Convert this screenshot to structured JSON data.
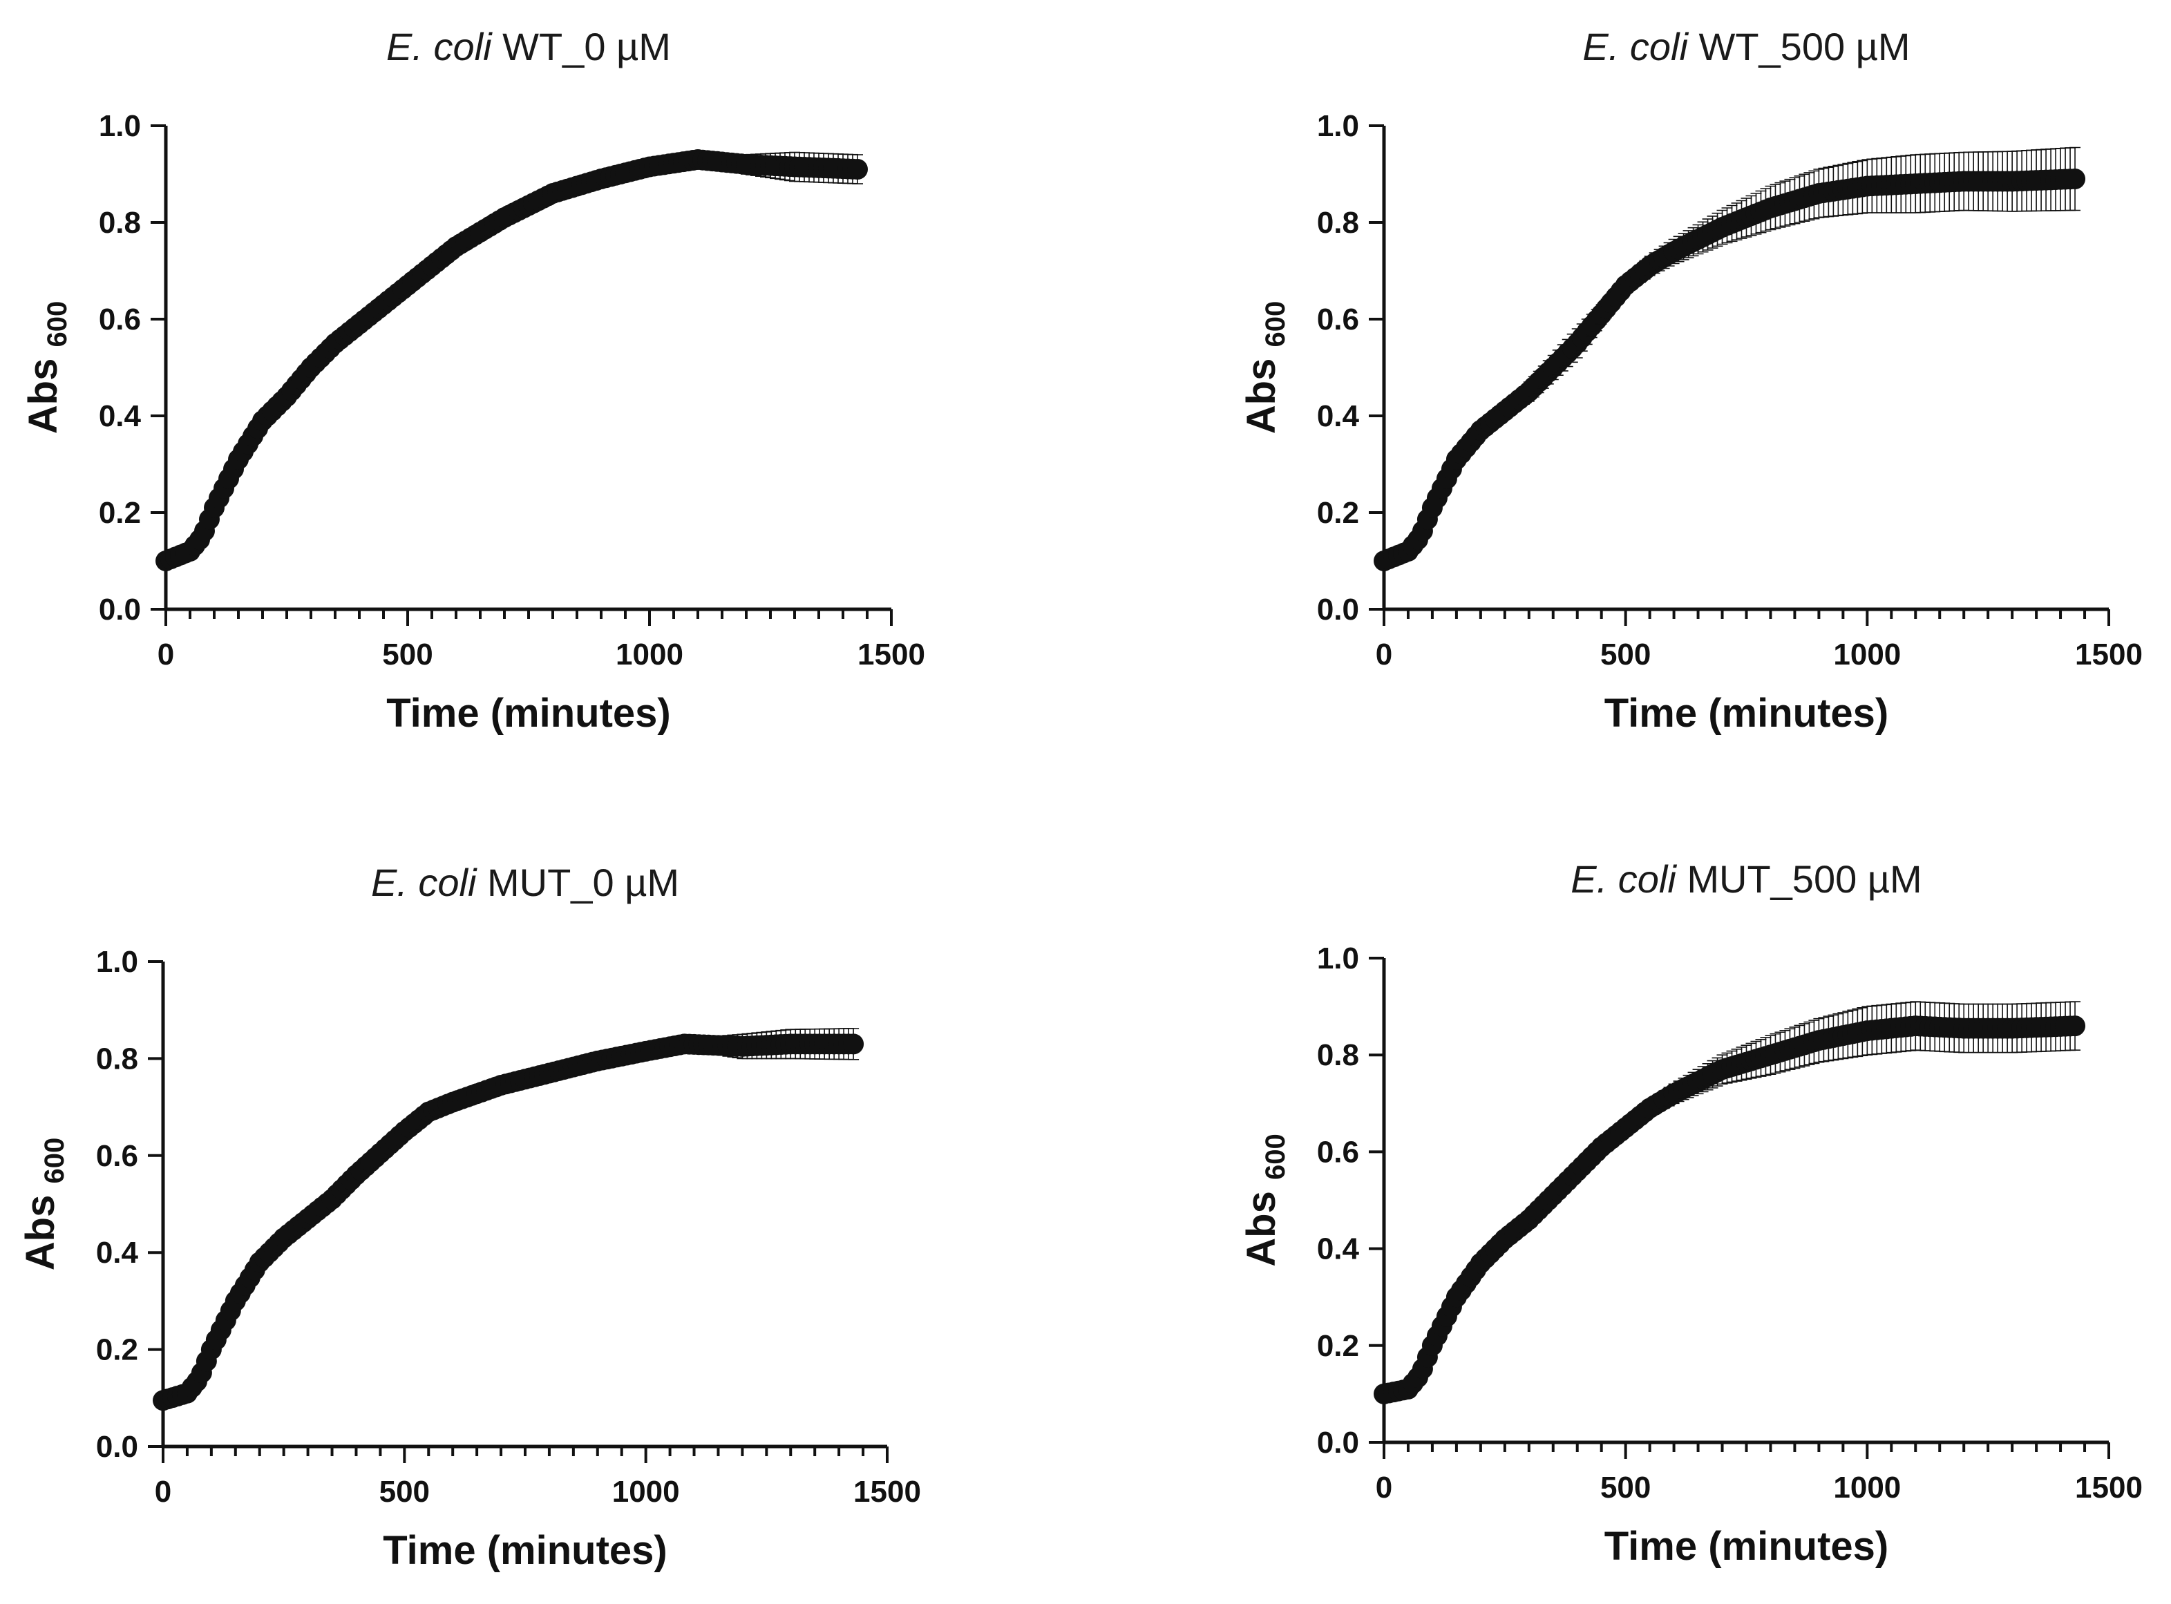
{
  "colors": {
    "marker": "#111111",
    "axis": "#111111",
    "background": "#ffffff"
  },
  "chart_data": [
    {
      "id": "wt0",
      "type": "scatter",
      "title": {
        "italic": "E. coli",
        "rest": " WT_0 µM"
      },
      "xlabel": "Time (minutes)",
      "ylabel": {
        "main": "Abs",
        "sub": "600"
      },
      "xlim": [
        0,
        1500
      ],
      "ylim": [
        0,
        1.0
      ],
      "xticks": [
        "0",
        "500",
        "1000",
        "1500"
      ],
      "yticks": [
        "0.0",
        "0.2",
        "0.4",
        "0.6",
        "0.8",
        "1.0"
      ],
      "series": [
        {
          "name": "E. coli WT_0 µM",
          "x": [
            0,
            50,
            75,
            100,
            150,
            200,
            250,
            300,
            350,
            400,
            500,
            600,
            700,
            800,
            900,
            1000,
            1100,
            1200,
            1300,
            1430
          ],
          "y": [
            0.1,
            0.12,
            0.15,
            0.21,
            0.31,
            0.39,
            0.44,
            0.5,
            0.55,
            0.59,
            0.67,
            0.75,
            0.81,
            0.86,
            0.89,
            0.915,
            0.93,
            0.92,
            0.915,
            0.91
          ],
          "err": [
            0.003,
            0.003,
            0.003,
            0.003,
            0.003,
            0.003,
            0.003,
            0.003,
            0.003,
            0.003,
            0.004,
            0.004,
            0.005,
            0.005,
            0.006,
            0.008,
            0.01,
            0.02,
            0.03,
            0.03
          ]
        }
      ]
    },
    {
      "id": "wt500",
      "type": "scatter",
      "title": {
        "italic": "E. coli",
        "rest": " WT_500 µM"
      },
      "xlabel": "Time (minutes)",
      "ylabel": {
        "main": "Abs",
        "sub": "600"
      },
      "xlim": [
        0,
        1500
      ],
      "ylim": [
        0,
        1.0
      ],
      "xticks": [
        "0",
        "500",
        "1000",
        "1500"
      ],
      "yticks": [
        "0.0",
        "0.2",
        "0.4",
        "0.6",
        "0.8",
        "1.0"
      ],
      "series": [
        {
          "name": "E. coli WT_500 µM",
          "x": [
            0,
            50,
            75,
            100,
            150,
            200,
            250,
            300,
            350,
            400,
            450,
            500,
            550,
            600,
            700,
            800,
            900,
            1000,
            1100,
            1200,
            1300,
            1430
          ],
          "y": [
            0.1,
            0.12,
            0.15,
            0.21,
            0.31,
            0.37,
            0.41,
            0.45,
            0.5,
            0.55,
            0.61,
            0.67,
            0.71,
            0.74,
            0.79,
            0.83,
            0.86,
            0.875,
            0.88,
            0.885,
            0.885,
            0.89
          ],
          "err": [
            0.003,
            0.003,
            0.003,
            0.003,
            0.004,
            0.005,
            0.01,
            0.02,
            0.025,
            0.03,
            0.02,
            0.015,
            0.02,
            0.025,
            0.035,
            0.045,
            0.05,
            0.055,
            0.06,
            0.06,
            0.062,
            0.065
          ]
        }
      ]
    },
    {
      "id": "mut0",
      "type": "scatter",
      "title": {
        "italic": "E. coli",
        "rest": " MUT_0 µM"
      },
      "xlabel": "Time (minutes)",
      "ylabel": {
        "main": "Abs",
        "sub": "600"
      },
      "xlim": [
        0,
        1500
      ],
      "ylim": [
        0,
        1.0
      ],
      "xticks": [
        "0",
        "500",
        "1000",
        "1500"
      ],
      "yticks": [
        "0.0",
        "0.2",
        "0.4",
        "0.6",
        "0.8",
        "1.0"
      ],
      "series": [
        {
          "name": "E. coli MUT_0 µM",
          "x": [
            0,
            50,
            75,
            100,
            150,
            200,
            250,
            300,
            350,
            400,
            500,
            550,
            600,
            700,
            800,
            900,
            1000,
            1080,
            1200,
            1300,
            1430
          ],
          "y": [
            0.095,
            0.11,
            0.14,
            0.2,
            0.3,
            0.38,
            0.43,
            0.47,
            0.51,
            0.56,
            0.65,
            0.69,
            0.71,
            0.745,
            0.77,
            0.795,
            0.815,
            0.83,
            0.825,
            0.83,
            0.83
          ],
          "err": [
            0.003,
            0.003,
            0.003,
            0.003,
            0.003,
            0.003,
            0.003,
            0.003,
            0.003,
            0.004,
            0.004,
            0.004,
            0.004,
            0.005,
            0.005,
            0.006,
            0.008,
            0.01,
            0.025,
            0.03,
            0.032
          ]
        }
      ]
    },
    {
      "id": "mut500",
      "type": "scatter",
      "title": {
        "italic": "E. coli",
        "rest": " MUT_500 µM"
      },
      "xlabel": "Time (minutes)",
      "ylabel": {
        "main": "Abs",
        "sub": "600"
      },
      "xlim": [
        0,
        1500
      ],
      "ylim": [
        0,
        1.0
      ],
      "xticks": [
        "0",
        "500",
        "1000",
        "1500"
      ],
      "yticks": [
        "0.0",
        "0.2",
        "0.4",
        "0.6",
        "0.8",
        "1.0"
      ],
      "series": [
        {
          "name": "E. coli MUT_500 µM",
          "x": [
            0,
            50,
            75,
            100,
            150,
            200,
            250,
            300,
            350,
            400,
            450,
            500,
            550,
            600,
            700,
            800,
            900,
            1000,
            1100,
            1200,
            1300,
            1430
          ],
          "y": [
            0.1,
            0.11,
            0.14,
            0.2,
            0.3,
            0.37,
            0.42,
            0.46,
            0.51,
            0.56,
            0.61,
            0.65,
            0.69,
            0.72,
            0.77,
            0.8,
            0.83,
            0.85,
            0.86,
            0.855,
            0.855,
            0.86
          ],
          "err": [
            0.003,
            0.003,
            0.003,
            0.003,
            0.003,
            0.004,
            0.005,
            0.008,
            0.012,
            0.01,
            0.01,
            0.012,
            0.015,
            0.02,
            0.03,
            0.04,
            0.045,
            0.05,
            0.05,
            0.05,
            0.05,
            0.05
          ]
        }
      ]
    }
  ]
}
